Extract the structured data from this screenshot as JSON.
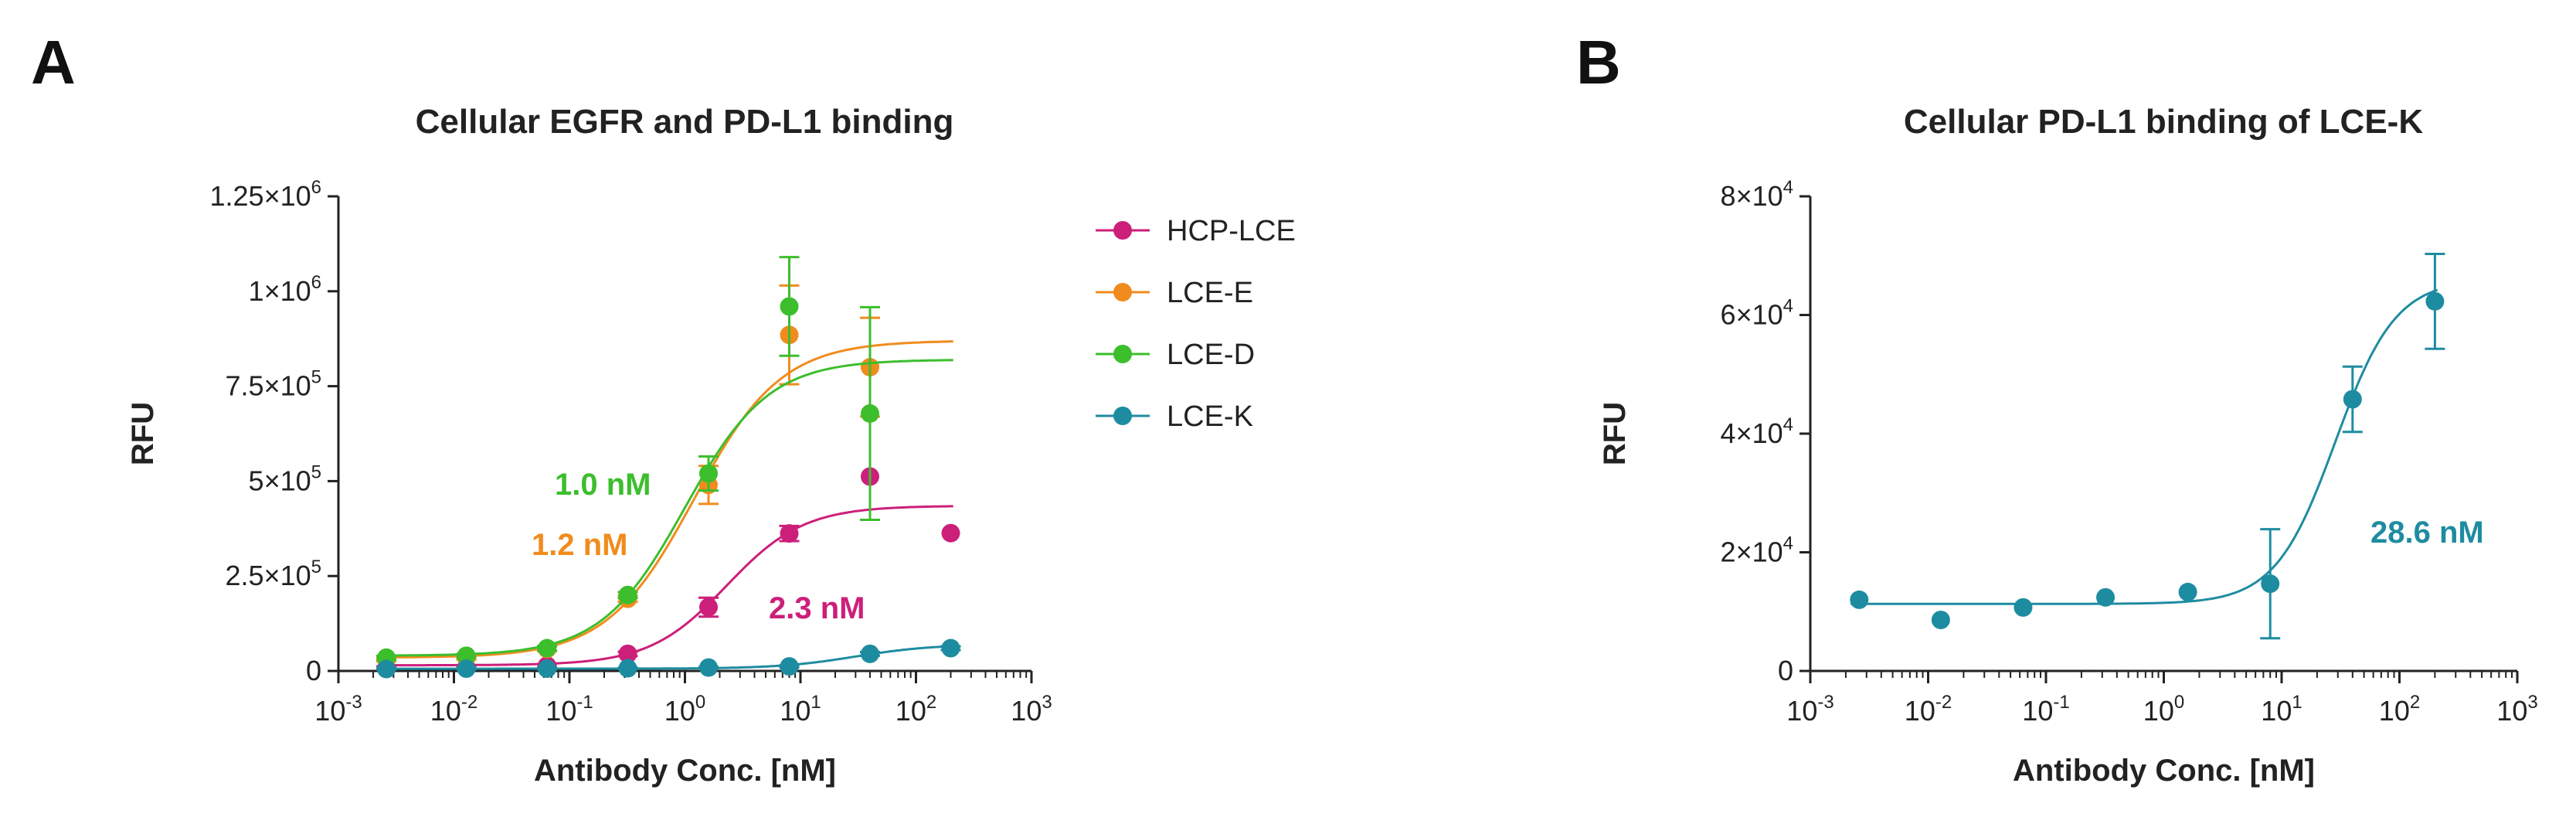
{
  "chart_data": [
    {
      "panel": "A",
      "type": "scatter",
      "title": "Cellular EGFR and PD-L1 binding",
      "xlabel": "Antibody Conc. [nM]",
      "ylabel": "RFU",
      "xscale": "log",
      "xlim": [
        0.001,
        1000
      ],
      "ylim": [
        0,
        1250000
      ],
      "x_ticks": [
        {
          "base": "10",
          "exp": "-3"
        },
        {
          "base": "10",
          "exp": "-2"
        },
        {
          "base": "10",
          "exp": "-1"
        },
        {
          "base": "10",
          "exp": "0"
        },
        {
          "base": "10",
          "exp": "1"
        },
        {
          "base": "10",
          "exp": "2"
        },
        {
          "base": "10",
          "exp": "3"
        }
      ],
      "y_ticks": [
        {
          "value": 0,
          "base": "0",
          "exp": ""
        },
        {
          "value": 250000,
          "base": "2.5×10",
          "exp": "5"
        },
        {
          "value": 500000,
          "base": "5×10",
          "exp": "5"
        },
        {
          "value": 750000,
          "base": "7.5×10",
          "exp": "5"
        },
        {
          "value": 1000000,
          "base": "1×10",
          "exp": "6"
        },
        {
          "value": 1250000,
          "base": "1.25×10",
          "exp": "6"
        }
      ],
      "legend_position": "right",
      "series": [
        {
          "name": "HCP-LCE",
          "color": "#cc1f7a",
          "ec50_label": "2.3 nM",
          "fit": {
            "bottom": 15000,
            "top": 435000,
            "ec50": 2.3,
            "hill": 1.3
          },
          "points": [
            {
              "x": 0.0026,
              "y": 8000,
              "err": 4000
            },
            {
              "x": 0.0128,
              "y": 9000,
              "err": 4000
            },
            {
              "x": 0.064,
              "y": 14000,
              "err": 4000
            },
            {
              "x": 0.32,
              "y": 45000,
              "err": 6000
            },
            {
              "x": 1.6,
              "y": 168000,
              "err": 25000
            },
            {
              "x": 8.0,
              "y": 362000,
              "err": 20000
            },
            {
              "x": 40,
              "y": 512000,
              "err": 0
            },
            {
              "x": 200,
              "y": 363000,
              "err": 0
            }
          ]
        },
        {
          "name": "LCE-E",
          "color": "#f08c1e",
          "ec50_label": "1.2 nM",
          "fit": {
            "bottom": 35000,
            "top": 870000,
            "ec50": 1.2,
            "hill": 1.15
          },
          "points": [
            {
              "x": 0.0026,
              "y": 30000,
              "err": 5000
            },
            {
              "x": 0.0128,
              "y": 35000,
              "err": 5000
            },
            {
              "x": 0.064,
              "y": 58000,
              "err": 6000
            },
            {
              "x": 0.32,
              "y": 190000,
              "err": 8000
            },
            {
              "x": 1.6,
              "y": 490000,
              "err": 50000
            },
            {
              "x": 8.0,
              "y": 885000,
              "err": 130000
            },
            {
              "x": 40,
              "y": 800000,
              "err": 130000
            }
          ]
        },
        {
          "name": "LCE-D",
          "color": "#3cbe2d",
          "ec50_label": "1.0 nM",
          "fit": {
            "bottom": 40000,
            "top": 820000,
            "ec50": 1.0,
            "hill": 1.2
          },
          "points": [
            {
              "x": 0.0026,
              "y": 35000,
              "err": 5000
            },
            {
              "x": 0.0128,
              "y": 40000,
              "err": 5000
            },
            {
              "x": 0.064,
              "y": 60000,
              "err": 6000
            },
            {
              "x": 0.32,
              "y": 200000,
              "err": 8000
            },
            {
              "x": 1.6,
              "y": 520000,
              "err": 45000
            },
            {
              "x": 8.0,
              "y": 960000,
              "err": 130000
            },
            {
              "x": 40,
              "y": 678000,
              "err": 280000
            }
          ]
        },
        {
          "name": "LCE-K",
          "color": "#1e8ca0",
          "ec50_label": "",
          "fit": {
            "bottom": 6000,
            "top": 70000,
            "ec50": 30,
            "hill": 1.3
          },
          "points": [
            {
              "x": 0.0026,
              "y": 5000,
              "err": 2000
            },
            {
              "x": 0.0128,
              "y": 6000,
              "err": 2000
            },
            {
              "x": 0.064,
              "y": 6000,
              "err": 2000
            },
            {
              "x": 0.32,
              "y": 7000,
              "err": 2000
            },
            {
              "x": 1.6,
              "y": 9000,
              "err": 2000
            },
            {
              "x": 8.0,
              "y": 12000,
              "err": 3000
            },
            {
              "x": 40,
              "y": 45000,
              "err": 5000
            },
            {
              "x": 200,
              "y": 60000,
              "err": 5000
            }
          ]
        }
      ]
    },
    {
      "panel": "B",
      "type": "scatter",
      "title": "Cellular PD-L1 binding of LCE-K",
      "xlabel": "Antibody Conc. [nM]",
      "ylabel": "RFU",
      "xscale": "log",
      "xlim": [
        0.001,
        1000
      ],
      "ylim": [
        0,
        80000
      ],
      "x_ticks": [
        {
          "base": "10",
          "exp": "-3"
        },
        {
          "base": "10",
          "exp": "-2"
        },
        {
          "base": "10",
          "exp": "-1"
        },
        {
          "base": "10",
          "exp": "0"
        },
        {
          "base": "10",
          "exp": "1"
        },
        {
          "base": "10",
          "exp": "2"
        },
        {
          "base": "10",
          "exp": "3"
        }
      ],
      "y_ticks": [
        {
          "value": 0,
          "base": "0",
          "exp": ""
        },
        {
          "value": 20000,
          "base": "2×10",
          "exp": "4"
        },
        {
          "value": 40000,
          "base": "4×10",
          "exp": "4"
        },
        {
          "value": 60000,
          "base": "6×10",
          "exp": "4"
        },
        {
          "value": 80000,
          "base": "8×10",
          "exp": "4"
        }
      ],
      "series": [
        {
          "name": "LCE-K",
          "color": "#1e8ca0",
          "ec50_label": "28.6 nM",
          "fit": {
            "bottom": 11300,
            "top": 66000,
            "ec50": 28.6,
            "hill": 1.7
          },
          "points": [
            {
              "x": 0.0026,
              "y": 12000,
              "err": 0
            },
            {
              "x": 0.0128,
              "y": 8600,
              "err": 0
            },
            {
              "x": 0.064,
              "y": 10700,
              "err": 0
            },
            {
              "x": 0.32,
              "y": 12400,
              "err": 0
            },
            {
              "x": 1.6,
              "y": 13300,
              "err": 0
            },
            {
              "x": 8.0,
              "y": 14700,
              "err": 9200
            },
            {
              "x": 40,
              "y": 45800,
              "err": 5500
            },
            {
              "x": 200,
              "y": 62300,
              "err": 8000
            }
          ]
        }
      ]
    }
  ]
}
